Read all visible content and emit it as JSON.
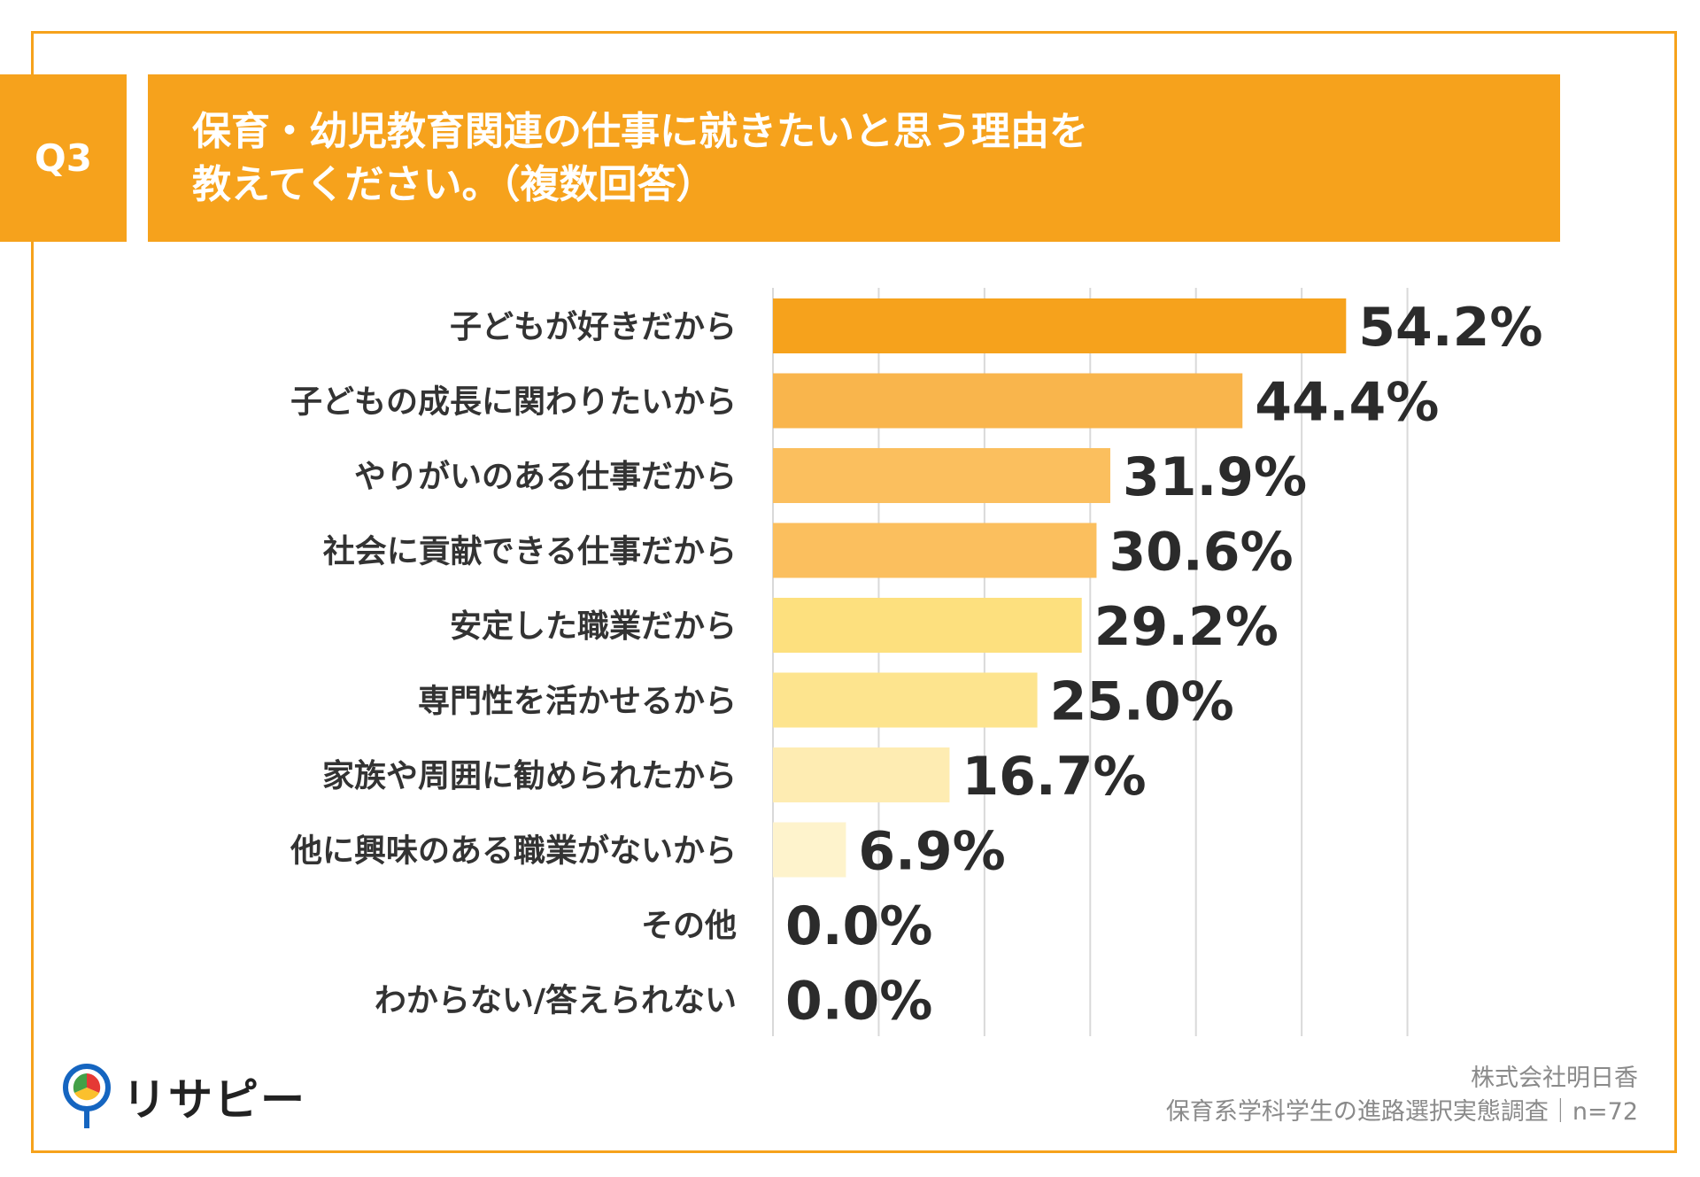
{
  "header": {
    "question_no": "Q3",
    "title_line1": "保育・幼児教育関連の仕事に就きたいと思う理由を",
    "title_line2": "教えてください。（複数回答）"
  },
  "colors": {
    "accent": "#f6a21c",
    "bar_shades": [
      "#f6a21c",
      "#f9b54c",
      "#fbbf5e",
      "#fbbf5e",
      "#fde07e",
      "#fde48e",
      "#feecb2",
      "#fef3cc",
      "#fef3cc",
      "#fef3cc"
    ],
    "grid": "#d9d9d9"
  },
  "chart_data": {
    "type": "bar",
    "orientation": "horizontal",
    "title": "保育・幼児教育関連の仕事に就きたいと思う理由を教えてください。（複数回答）",
    "categories": [
      "子どもが好きだから",
      "子どもの成長に関わりたいから",
      "やりがいのある仕事だから",
      "社会に貢献できる仕事だから",
      "安定した職業だから",
      "専門性を活かせるから",
      "家族や周囲に勧められたから",
      "他に興味のある職業がないから",
      "その他",
      "わからない/答えられない"
    ],
    "values": [
      54.2,
      44.4,
      31.9,
      30.6,
      29.2,
      25.0,
      16.7,
      6.9,
      0.0,
      0.0
    ],
    "value_labels": [
      "54.2%",
      "44.4%",
      "31.9%",
      "30.6%",
      "29.2%",
      "25.0%",
      "16.7%",
      "6.9%",
      "0.0%",
      "0.0%"
    ],
    "xlim": [
      0,
      60
    ],
    "grid": true,
    "unit": "%"
  },
  "footer": {
    "company": "株式会社明日香",
    "survey": "保育系学科学生の進路選択実態調査｜n=72",
    "brand": "リサピー"
  }
}
